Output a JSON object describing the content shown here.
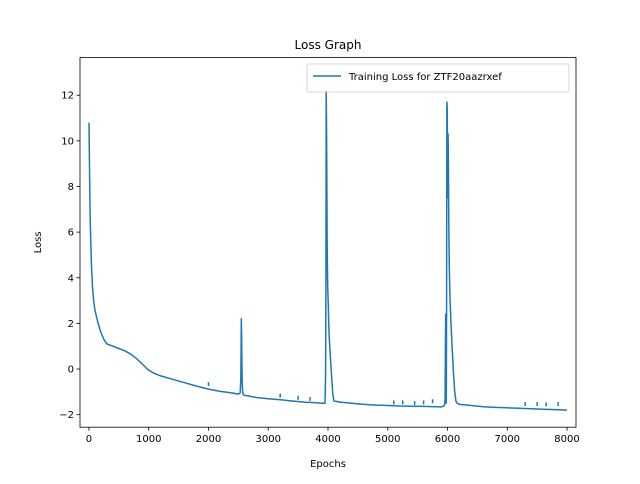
{
  "chart_data": {
    "type": "line",
    "title": "Loss Graph",
    "xlabel": "Epochs",
    "ylabel": "Loss",
    "xlim": [
      -150,
      8150
    ],
    "ylim": [
      -2.55,
      13.65
    ],
    "xticks": [
      0,
      1000,
      2000,
      3000,
      4000,
      5000,
      6000,
      7000,
      8000
    ],
    "yticks": [
      -2,
      0,
      2,
      4,
      6,
      8,
      10,
      12
    ],
    "grid": false,
    "legend_position": "top-right",
    "series": [
      {
        "name": "Training Loss for ZTF20aazrxef",
        "color": "#1f77b4",
        "x": [
          0,
          10,
          20,
          40,
          60,
          80,
          100,
          130,
          160,
          200,
          250,
          300,
          400,
          500,
          600,
          700,
          800,
          900,
          1000,
          1100,
          1200,
          1400,
          1600,
          1800,
          2000,
          2200,
          2400,
          2500,
          2530,
          2540,
          2545,
          2550,
          2555,
          2560,
          2565,
          2570,
          2575,
          2580,
          2600,
          2700,
          2800,
          3000,
          3200,
          3400,
          3600,
          3800,
          3900,
          3950,
          3960,
          3965,
          3970,
          3975,
          3980,
          3985,
          3990,
          3995,
          4000,
          4005,
          4010,
          4020,
          4040,
          4060,
          4080,
          4100,
          4200,
          4400,
          4600,
          4800,
          5000,
          5200,
          5400,
          5600,
          5800,
          5900,
          5950,
          5960,
          5965,
          5970,
          5975,
          5980,
          5985,
          5990,
          5995,
          6000,
          6005,
          6010,
          6015,
          6020,
          6025,
          6030,
          6040,
          6060,
          6080,
          6100,
          6120,
          6140,
          6160,
          6200,
          6400,
          6600,
          6800,
          7000,
          7200,
          7400,
          7600,
          7800,
          8000
        ],
        "y": [
          10.8,
          8.5,
          6.5,
          4.6,
          3.6,
          3.0,
          2.6,
          2.25,
          1.95,
          1.6,
          1.3,
          1.1,
          1.0,
          0.9,
          0.8,
          0.65,
          0.45,
          0.2,
          -0.05,
          -0.2,
          -0.3,
          -0.45,
          -0.6,
          -0.75,
          -0.88,
          -0.98,
          -1.05,
          -1.1,
          -1.05,
          -0.4,
          0.8,
          2.2,
          1.6,
          0.3,
          -0.6,
          -0.9,
          -1.05,
          -1.1,
          -1.15,
          -1.2,
          -1.25,
          -1.3,
          -1.35,
          -1.4,
          -1.45,
          -1.48,
          -1.5,
          -1.5,
          -0.3,
          3.5,
          12.2,
          10.8,
          8.9,
          5.8,
          4.6,
          3.6,
          3.2,
          2.8,
          2.2,
          1.4,
          0.5,
          -0.3,
          -1.1,
          -1.4,
          -1.45,
          -1.5,
          -1.55,
          -1.58,
          -1.6,
          -1.62,
          -1.63,
          -1.64,
          -1.65,
          -1.66,
          -1.6,
          -1.3,
          0.9,
          2.4,
          0.5,
          -1.5,
          3.0,
          11.7,
          11.5,
          9.2,
          7.5,
          10.3,
          9.0,
          7.0,
          5.5,
          4.5,
          3.2,
          1.9,
          0.8,
          -0.2,
          -1.0,
          -1.4,
          -1.5,
          -1.55,
          -1.6,
          -1.65,
          -1.68,
          -1.7,
          -1.72,
          -1.74,
          -1.76,
          -1.78,
          -1.8
        ]
      }
    ],
    "mini_spikes": [
      {
        "x": 2000,
        "y": -0.75
      },
      {
        "x": 3200,
        "y": -1.25
      },
      {
        "x": 3500,
        "y": -1.35
      },
      {
        "x": 3700,
        "y": -1.4
      },
      {
        "x": 5100,
        "y": -1.55
      },
      {
        "x": 5250,
        "y": -1.55
      },
      {
        "x": 5450,
        "y": -1.58
      },
      {
        "x": 5600,
        "y": -1.55
      },
      {
        "x": 5750,
        "y": -1.5
      },
      {
        "x": 7300,
        "y": -1.62
      },
      {
        "x": 7500,
        "y": -1.62
      },
      {
        "x": 7650,
        "y": -1.64
      },
      {
        "x": 7850,
        "y": -1.62
      }
    ]
  }
}
